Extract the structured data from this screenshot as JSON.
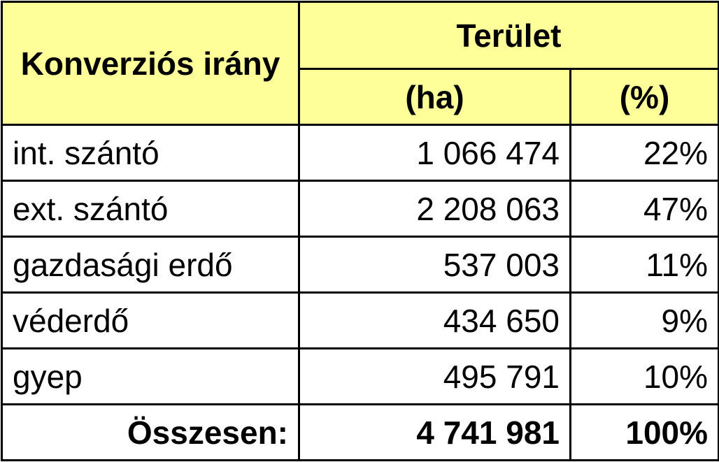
{
  "header": {
    "direction": "Konverziós irány",
    "area": "Terület",
    "unit_ha": "(ha)",
    "unit_pct": "(%)"
  },
  "table": {
    "rows": [
      [
        "int. szántó",
        "1 066 474",
        "22%"
      ],
      [
        "ext. szántó",
        "2 208 063",
        "47%"
      ],
      [
        "gazdasági erdő",
        "537 003",
        "11%"
      ],
      [
        "véderdő",
        "434 650",
        "9%"
      ],
      [
        "gyep",
        "495 791",
        "10%"
      ]
    ],
    "total": [
      "Összesen:",
      "4 741 981",
      "100%"
    ]
  }
}
